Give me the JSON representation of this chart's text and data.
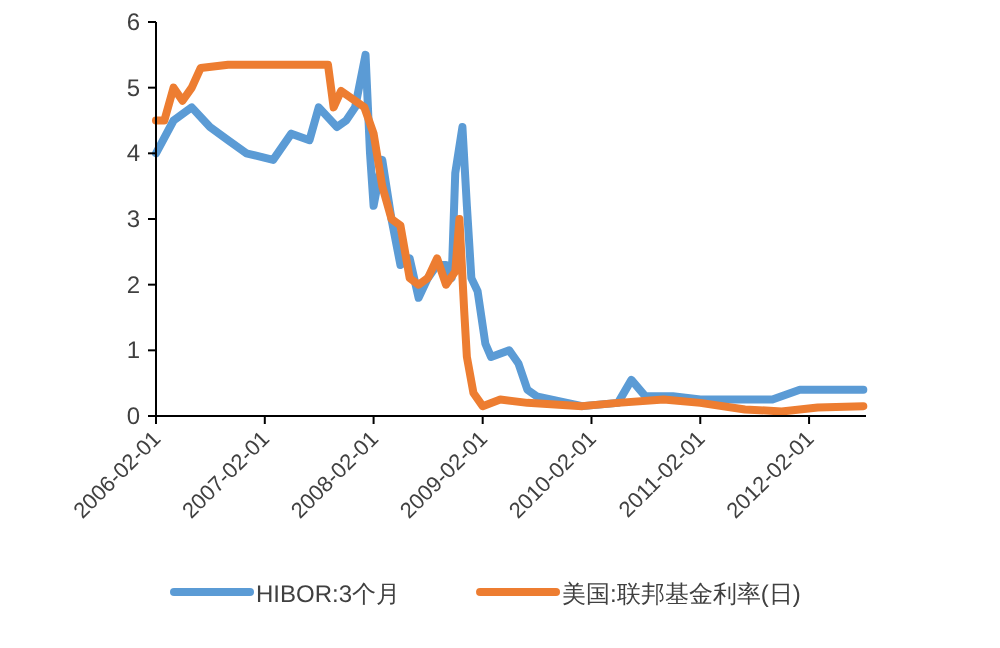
{
  "chart_data": {
    "type": "line",
    "xlim": [
      "2006-02-01",
      "2012-08-10"
    ],
    "xticks": [
      "2006-02-01",
      "2007-02-01",
      "2008-02-01",
      "2009-02-01",
      "2010-02-01",
      "2011-02-01",
      "2012-02-01"
    ],
    "ylim": [
      0,
      6
    ],
    "yticks": [
      0,
      1,
      2,
      3,
      4,
      5,
      6
    ],
    "grid": false,
    "legend": "bottom",
    "marker": "none",
    "line_style": "solid",
    "series": [
      {
        "name": "HIBOR:3个月",
        "color": "#5b9bd5",
        "x": [
          "2006-02-01",
          "2006-04-01",
          "2006-06-01",
          "2006-08-01",
          "2006-10-01",
          "2006-12-01",
          "2007-03-01",
          "2007-05-01",
          "2007-07-01",
          "2007-08-01",
          "2007-10-01",
          "2007-11-01",
          "2007-12-01",
          "2008-01-05",
          "2008-01-20",
          "2008-02-01",
          "2008-03-01",
          "2008-04-01",
          "2008-05-01",
          "2008-06-01",
          "2008-07-01",
          "2008-08-01",
          "2008-09-01",
          "2008-10-01",
          "2008-10-20",
          "2008-11-01",
          "2008-11-25",
          "2008-12-10",
          "2008-12-25",
          "2009-01-15",
          "2009-02-10",
          "2009-03-01",
          "2009-05-01",
          "2009-06-01",
          "2009-07-01",
          "2009-08-01",
          "2010-01-01",
          "2010-05-01",
          "2010-06-15",
          "2010-08-01",
          "2010-11-01",
          "2011-02-01",
          "2011-10-01",
          "2012-01-01",
          "2012-08-01"
        ],
        "values": [
          4.0,
          4.5,
          4.7,
          4.4,
          4.2,
          4.0,
          3.9,
          4.3,
          4.2,
          4.7,
          4.4,
          4.5,
          4.7,
          5.5,
          4.0,
          3.2,
          3.9,
          3.0,
          2.3,
          2.4,
          1.8,
          2.1,
          2.3,
          2.3,
          2.1,
          3.7,
          4.4,
          3.2,
          2.1,
          1.9,
          1.1,
          0.9,
          1.0,
          0.8,
          0.4,
          0.3,
          0.15,
          0.2,
          0.55,
          0.3,
          0.3,
          0.25,
          0.25,
          0.4,
          0.4
        ]
      },
      {
        "name": "美国:联邦基金利率(日)",
        "color": "#ed7d31",
        "x": [
          "2006-02-01",
          "2006-03-01",
          "2006-04-01",
          "2006-05-01",
          "2006-06-01",
          "2006-07-01",
          "2006-10-01",
          "2007-05-01",
          "2007-09-01",
          "2007-09-20",
          "2007-10-15",
          "2007-12-01",
          "2008-01-01",
          "2008-02-01",
          "2008-03-01",
          "2008-04-01",
          "2008-05-01",
          "2008-06-01",
          "2008-07-01",
          "2008-08-01",
          "2008-09-01",
          "2008-10-01",
          "2008-11-01",
          "2008-11-15",
          "2008-12-01",
          "2008-12-10",
          "2009-01-01",
          "2009-02-01",
          "2009-04-01",
          "2009-07-01",
          "2010-01-01",
          "2010-05-01",
          "2010-10-01",
          "2011-02-01",
          "2011-07-01",
          "2011-11-01",
          "2012-03-01",
          "2012-08-01"
        ],
        "values": [
          4.5,
          4.5,
          5.0,
          4.8,
          5.0,
          5.3,
          5.35,
          5.35,
          5.35,
          4.7,
          4.95,
          4.8,
          4.7,
          4.3,
          3.5,
          3.0,
          2.9,
          2.1,
          2.0,
          2.1,
          2.4,
          2.0,
          2.2,
          3.0,
          1.6,
          0.9,
          0.35,
          0.15,
          0.25,
          0.2,
          0.15,
          0.2,
          0.25,
          0.2,
          0.1,
          0.07,
          0.13,
          0.15
        ]
      }
    ]
  }
}
